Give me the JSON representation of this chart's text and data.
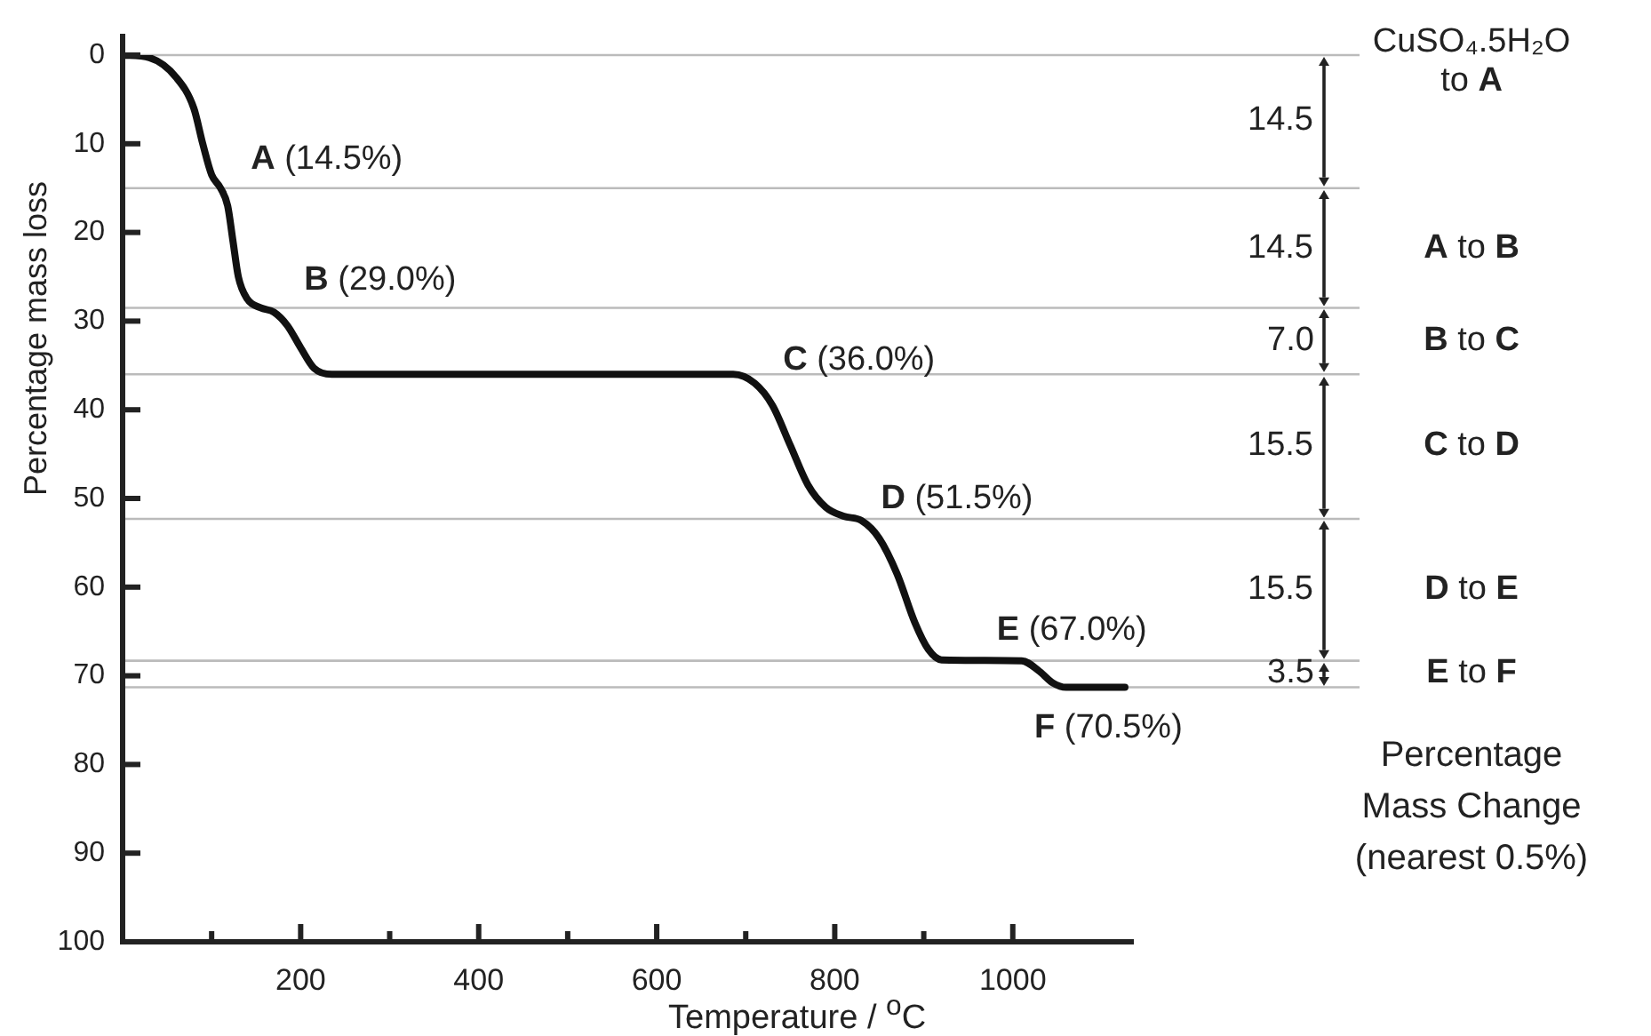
{
  "chart_data": {
    "type": "line",
    "xlabel": "Temperature / $^{o}$C",
    "ylabel": "Percentage mass loss",
    "x": [
      0,
      30,
      60,
      80,
      90,
      100,
      110,
      118,
      124,
      130,
      140,
      155,
      170,
      185,
      200,
      215,
      235,
      686,
      710,
      730,
      750,
      770,
      790,
      810,
      830,
      850,
      870,
      890,
      905,
      920,
      1010,
      1030,
      1045,
      1060,
      1126
    ],
    "series": [
      {
        "color": "#111111",
        "values": [
          0,
          0.3,
          2.5,
          6,
          10,
          13.5,
          15,
          17,
          21,
          25,
          27.5,
          28.5,
          29,
          30.5,
          33,
          35.3,
          36,
          36,
          37,
          39.5,
          44,
          48.5,
          51,
          52,
          52.5,
          54.5,
          58.5,
          64,
          67,
          68.2,
          68.3,
          69.5,
          70.8,
          71.3,
          71.3
        ]
      }
    ],
    "xlim": [
      0,
      1136
    ],
    "ylim": [
      100,
      0
    ],
    "xticks": [
      {
        "value": 100,
        "label": null
      },
      200,
      {
        "value": 300,
        "label": null
      },
      400,
      {
        "value": 500,
        "label": null
      },
      600,
      {
        "value": 700,
        "label": null
      },
      800,
      {
        "value": 900,
        "label": null
      },
      1000
    ],
    "yticks": [
      0,
      10,
      20,
      30,
      40,
      50,
      60,
      70,
      80,
      90,
      100
    ],
    "grid": false,
    "legend": false,
    "marker": "none",
    "line_style": "solid",
    "ref_lines": [
      {
        "axis": "y",
        "value": 0,
        "color": "#bbbbbb"
      },
      {
        "axis": "y",
        "value": 15,
        "color": "#bbbbbb"
      },
      {
        "axis": "y",
        "value": 28.5,
        "color": "#bbbbbb"
      },
      {
        "axis": "y",
        "value": 36,
        "color": "#bbbbbb"
      },
      {
        "axis": "y",
        "value": 52.3,
        "color": "#bbbbbb"
      },
      {
        "axis": "y",
        "value": 68.3,
        "color": "#bbbbbb"
      },
      {
        "axis": "y",
        "value": 71.3,
        "color": "#bbbbbb"
      }
    ],
    "annotations": [
      {
        "text": "A (14.5%)",
        "x": 110,
        "y": 15
      },
      {
        "text": "B (29.0%)",
        "x": 170,
        "y": 29
      },
      {
        "text": "C (36.0%)",
        "x": 686,
        "y": 36
      },
      {
        "text": "D (51.5%)",
        "x": 830,
        "y": 52.5
      },
      {
        "text": "E (67.0%)",
        "x": 1010,
        "y": 68.3
      },
      {
        "text": "F (70.5%)",
        "x": 1126,
        "y": 71.3
      },
      "14.5",
      "14.5",
      "7.0",
      "15.5",
      "15.5",
      "3.5",
      "CuSO₄.5H₂O to A",
      "A to B",
      "B to C",
      "C to D",
      "D to E",
      "E to F",
      "Percentage Mass Change (nearest 0.5%)"
    ]
  }
}
